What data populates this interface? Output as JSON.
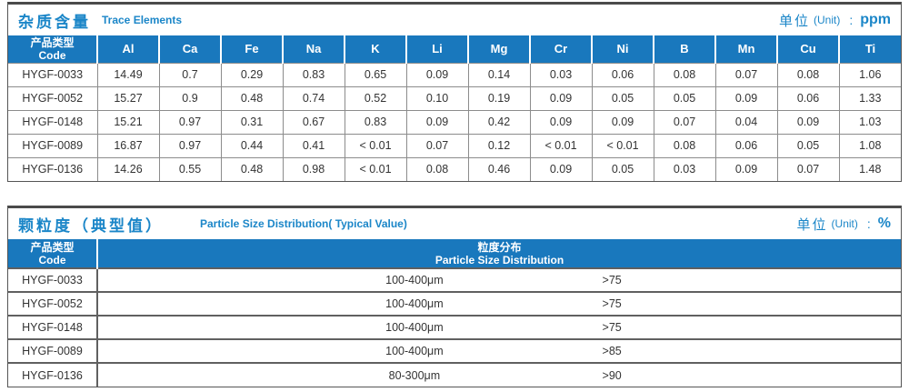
{
  "colors": {
    "header_bg": "#1978bd",
    "title_blue": "#1b86c8",
    "outer_border": "#4a4a4a",
    "grid_line": "#8c8c8c"
  },
  "trace_table": {
    "title_zh": "杂质含量",
    "title_en": "Trace Elements",
    "unit_zh": "单位",
    "unit_en": "(Unit)",
    "unit_colon": ":",
    "unit_value": "ppm",
    "code_header_zh": "产品类型",
    "code_header_en": "Code",
    "element_columns": [
      "Al",
      "Ca",
      "Fe",
      "Na",
      "K",
      "Li",
      "Mg",
      "Cr",
      "Ni",
      "B",
      "Mn",
      "Cu",
      "Ti"
    ],
    "rows": [
      {
        "code": "HYGF-0033",
        "values": [
          "14.49",
          "0.7",
          "0.29",
          "0.83",
          "0.65",
          "0.09",
          "0.14",
          "0.03",
          "0.06",
          "0.08",
          "0.07",
          "0.08",
          "1.06"
        ]
      },
      {
        "code": "HYGF-0052",
        "values": [
          "15.27",
          "0.9",
          "0.48",
          "0.74",
          "0.52",
          "0.10",
          "0.19",
          "0.09",
          "0.05",
          "0.05",
          "0.09",
          "0.06",
          "1.33"
        ]
      },
      {
        "code": "HYGF-0148",
        "values": [
          "15.21",
          "0.97",
          "0.31",
          "0.67",
          "0.83",
          "0.09",
          "0.42",
          "0.09",
          "0.09",
          "0.07",
          "0.04",
          "0.09",
          "1.03"
        ]
      },
      {
        "code": "HYGF-0089",
        "values": [
          "16.87",
          "0.97",
          "0.44",
          "0.41",
          "< 0.01",
          "0.07",
          "0.12",
          "< 0.01",
          "< 0.01",
          "0.08",
          "0.06",
          "0.05",
          "1.08"
        ]
      },
      {
        "code": "HYGF-0136",
        "values": [
          "14.26",
          "0.55",
          "0.48",
          "0.98",
          "< 0.01",
          "0.08",
          "0.46",
          "0.09",
          "0.05",
          "0.03",
          "0.09",
          "0.07",
          "1.48"
        ]
      }
    ]
  },
  "particle_table": {
    "title_zh": "颗粒度（典型值）",
    "title_en": "Particle Size Distribution( Typical Value)",
    "unit_zh": "单位",
    "unit_en": "(Unit)",
    "unit_colon": ":",
    "unit_value": "%",
    "code_header_zh": "产品类型",
    "code_header_en": "Code",
    "dist_header_zh": "粒度分布",
    "dist_header_en": "Particle Size  Distribution",
    "rows": [
      {
        "code": "HYGF-0033",
        "range": "100-400μm",
        "percent": ">75"
      },
      {
        "code": "HYGF-0052",
        "range": "100-400μm",
        "percent": ">75"
      },
      {
        "code": "HYGF-0148",
        "range": "100-400μm",
        "percent": ">75"
      },
      {
        "code": "HYGF-0089",
        "range": "100-400μm",
        "percent": ">85"
      },
      {
        "code": "HYGF-0136",
        "range": "80-300μm",
        "percent": ">90"
      }
    ]
  }
}
